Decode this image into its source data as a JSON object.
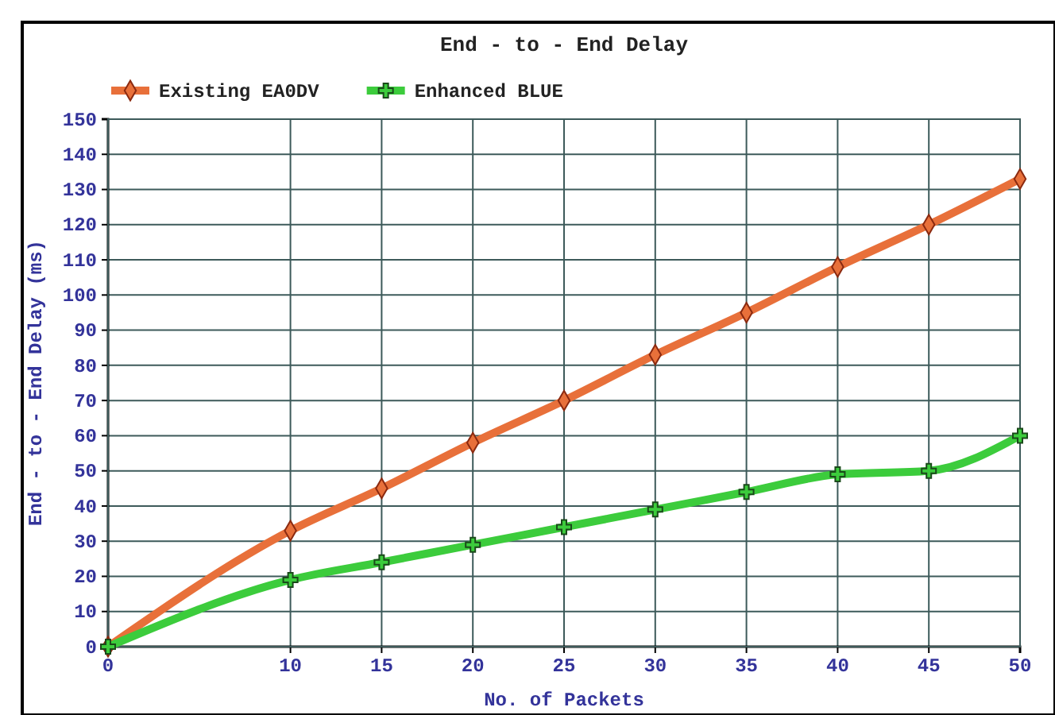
{
  "chart_data": {
    "type": "line",
    "title": "End - to - End Delay",
    "xlabel": "No. of Packets",
    "ylabel": "End - to - End Delay (ms)",
    "x": [
      0,
      10,
      15,
      20,
      25,
      30,
      35,
      40,
      45,
      50
    ],
    "series": [
      {
        "name": "Existing EA0DV",
        "color": "#e8703a",
        "marker": "diamond",
        "values": [
          0,
          33,
          45,
          58,
          70,
          83,
          95,
          108,
          120,
          133
        ]
      },
      {
        "name": "Enhanced BLUE",
        "color": "#3ccc3c",
        "marker": "cross",
        "values": [
          0,
          19,
          24,
          29,
          34,
          39,
          44,
          49,
          50,
          60
        ]
      }
    ],
    "xlim": [
      0,
      50
    ],
    "xticks": [
      0,
      10,
      15,
      20,
      25,
      30,
      35,
      40,
      45,
      50
    ],
    "ylim": [
      0,
      150
    ],
    "yticks": [
      0,
      10,
      20,
      30,
      40,
      50,
      60,
      70,
      80,
      90,
      100,
      110,
      120,
      130,
      140,
      150
    ],
    "grid": true,
    "legend": "top left",
    "line_style": "solid"
  }
}
